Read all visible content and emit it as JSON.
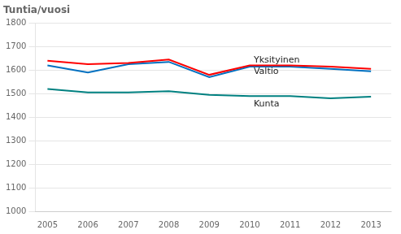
{
  "chart_data": {
    "type": "line",
    "title": "Tuntia/vuosi",
    "x": [
      2005,
      2006,
      2007,
      2008,
      2009,
      2010,
      2011,
      2012,
      2013
    ],
    "series": [
      {
        "color": "#ff0000",
        "values": [
          1640,
          1625,
          1630,
          1645,
          1580,
          1620,
          1620,
          1615,
          1605
        ]
      },
      {
        "color": "#0070c0",
        "values": [
          1620,
          1590,
          1625,
          1635,
          1570,
          1615,
          1615,
          1605,
          1595
        ]
      },
      {
        "color": "#008080",
        "values": [
          1520,
          1505,
          1505,
          1510,
          1495,
          1490,
          1490,
          1480,
          1487
        ]
      }
    ],
    "annotations": [
      {
        "text": "Yksityinen",
        "x": 2010.1,
        "y": 1642
      },
      {
        "text": "Valtio",
        "x": 2010.1,
        "y": 1595
      },
      {
        "text": "Kunta",
        "x": 2010.1,
        "y": 1455
      }
    ],
    "xlim": [
      2004.7,
      2013.5
    ],
    "xticks": [
      2005,
      2006,
      2007,
      2008,
      2009,
      2010,
      2011,
      2012,
      2013
    ],
    "ylim": [
      1000,
      1800
    ],
    "yticks": [
      1000,
      1100,
      1200,
      1300,
      1400,
      1500,
      1600,
      1700,
      1800
    ],
    "grid": true
  }
}
